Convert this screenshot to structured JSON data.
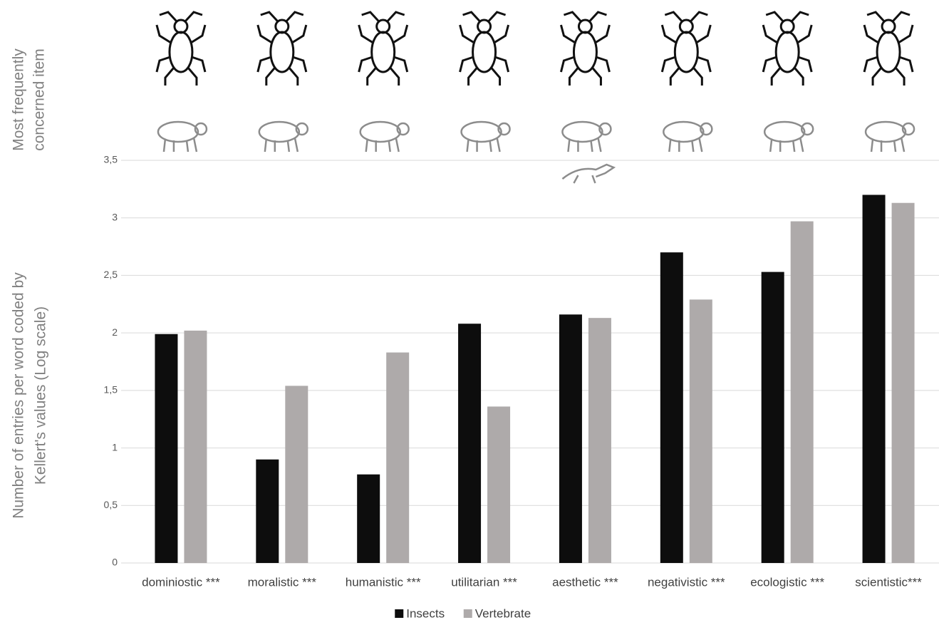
{
  "chart_data": {
    "type": "bar",
    "y_label_top": [
      "Most frequently",
      "concerned item"
    ],
    "y_label": [
      "Number of entries per word coded by",
      "Kellert's values (Log scale)"
    ],
    "categories": [
      "dominiostic ***",
      "moralistic ***",
      "humanistic ***",
      "utilitarian ***",
      "aesthetic ***",
      "negativistic ***",
      "ecologistic ***",
      "scientistic***"
    ],
    "series": [
      {
        "name": "Insects",
        "color": "#0d0d0d",
        "values": [
          1.99,
          0.9,
          0.77,
          2.08,
          2.16,
          2.7,
          2.53,
          3.2
        ]
      },
      {
        "name": "Vertebrate",
        "color": "#aeaaaa",
        "values": [
          2.02,
          1.54,
          1.83,
          1.36,
          2.13,
          2.29,
          2.97,
          3.13
        ]
      }
    ],
    "ylim": [
      0,
      3.5
    ],
    "yticks": [
      0,
      {
        "value": 0.5,
        "label": "0,5"
      },
      1,
      {
        "value": 1.5,
        "label": "1,5"
      },
      2,
      {
        "value": 2.5,
        "label": "2,5"
      },
      3,
      {
        "value": 3.5,
        "label": "3,5"
      }
    ],
    "grid": true,
    "legend": "bottom"
  }
}
